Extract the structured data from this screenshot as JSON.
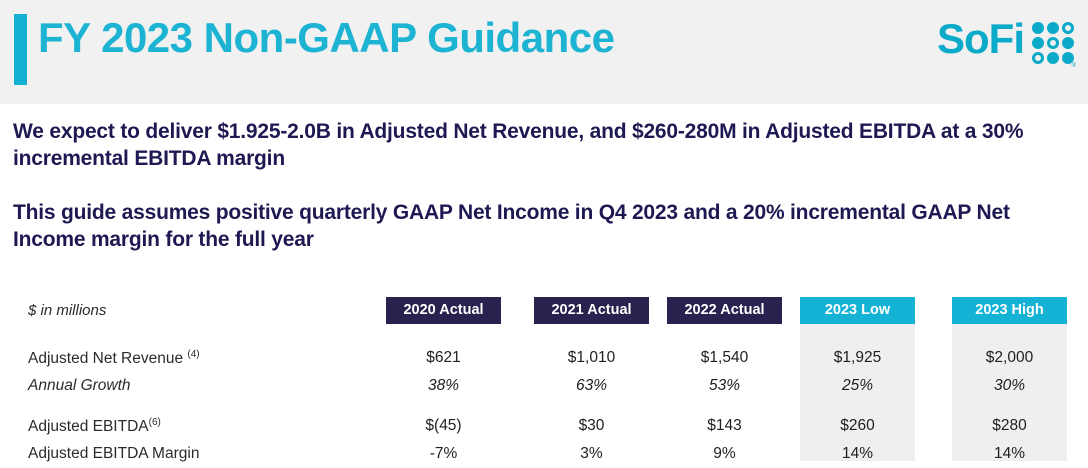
{
  "header": {
    "title": "FY 2023 Non-GAAP Guidance",
    "logo_text": "SoFi",
    "registered_mark": "®"
  },
  "summary": {
    "paragraph1": "We expect to deliver $1.925-2.0B in Adjusted Net Revenue, and $260-280M in Adjusted EBITDA at a 30% incremental EBITDA margin",
    "paragraph2": "This guide assumes positive quarterly GAAP Net Income in Q4 2023 and a 20% incremental GAAP Net Income margin for the full year"
  },
  "table": {
    "units_label": "$ in millions",
    "columns": [
      {
        "label": "2020 Actual",
        "type": "actual"
      },
      {
        "label": "2021 Actual",
        "type": "actual"
      },
      {
        "label": "2022 Actual",
        "type": "actual"
      },
      {
        "label": "2023 Low",
        "type": "guidance"
      },
      {
        "label": "2023 High",
        "type": "guidance"
      }
    ],
    "rows": [
      {
        "label": "Adjusted Net Revenue ",
        "footnote": "(4)",
        "values": [
          "$621",
          "$1,010",
          "$1,540",
          "$1,925",
          "$2,000"
        ]
      },
      {
        "label": "Annual Growth",
        "footnote": "",
        "values": [
          "38%",
          "63%",
          "53%",
          "25%",
          "30%"
        ]
      },
      {
        "label": "Adjusted EBITDA",
        "footnote": "(6)",
        "values": [
          "$(45)",
          "$30",
          "$143",
          "$260",
          "$280"
        ]
      },
      {
        "label": "Adjusted EBITDA Margin",
        "footnote": "",
        "values": [
          "-7%",
          "3%",
          "9%",
          "14%",
          "14%"
        ]
      }
    ]
  },
  "colors": {
    "accent_cyan": "#14b1d2",
    "logo_cyan": "#0caac9",
    "navy": "#29224f",
    "body_text_navy": "#1e1952",
    "header_band_gray": "#f1f1f2",
    "highlight_column_gray": "#efefef"
  }
}
